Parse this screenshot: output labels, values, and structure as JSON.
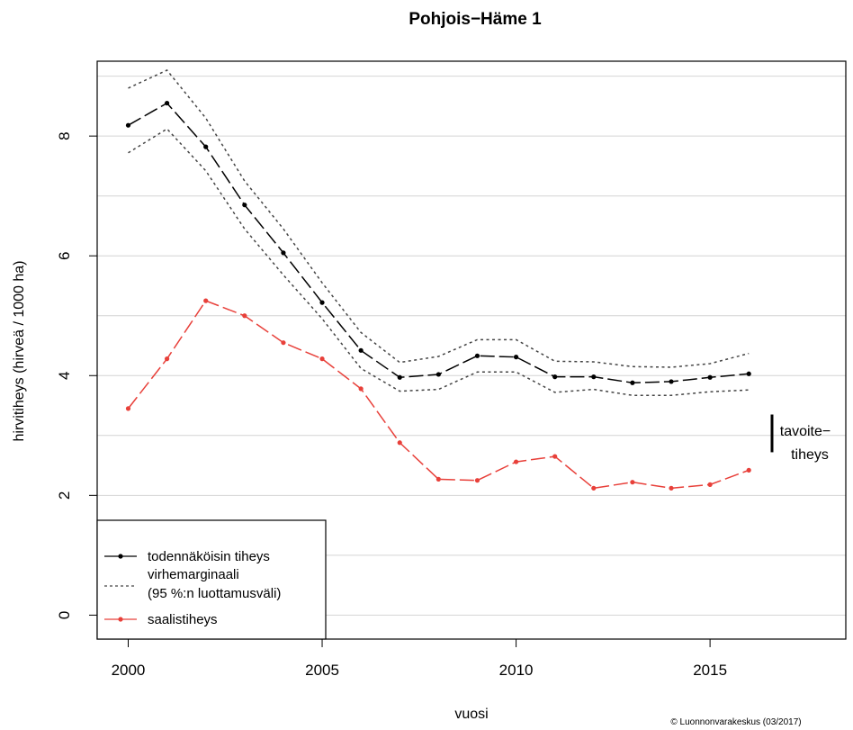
{
  "chart_data": {
    "type": "line",
    "title": "Pohjois−Häme 1",
    "xlabel": "vuosi",
    "ylabel": "hirvitiheys (hirveä / 1000 ha)",
    "xlim": [
      1999.2,
      2018.5
    ],
    "ylim": [
      -0.4,
      9.25
    ],
    "x_ticks": [
      2000,
      2005,
      2010,
      2015
    ],
    "y_ticks": [
      0,
      2,
      4,
      6,
      8
    ],
    "grid": "horizontal",
    "gridlines": [
      0,
      1,
      2,
      3,
      4,
      5,
      6,
      7,
      8,
      9
    ],
    "legend_position": "bottom-left",
    "x": [
      2000,
      2001,
      2002,
      2003,
      2004,
      2005,
      2006,
      2007,
      2008,
      2009,
      2010,
      2011,
      2012,
      2013,
      2014,
      2015,
      2016
    ],
    "series": [
      {
        "name": "todennäköisin tiheys",
        "color": "#000000",
        "style": "long-dash-with-points",
        "values": [
          8.18,
          8.55,
          7.82,
          6.85,
          6.05,
          5.22,
          4.42,
          3.97,
          4.02,
          4.33,
          4.31,
          3.98,
          3.98,
          3.88,
          3.9,
          3.97,
          4.03
        ]
      },
      {
        "name": "virhemarginaali (95 %:n luottamusväli) yläraja",
        "color": "#444444",
        "style": "dotted",
        "values": [
          8.8,
          9.1,
          8.3,
          7.25,
          6.45,
          5.55,
          4.72,
          4.22,
          4.32,
          4.6,
          4.6,
          4.24,
          4.23,
          4.15,
          4.14,
          4.2,
          4.37
        ]
      },
      {
        "name": "virhemarginaali (95 %:n luottamusväli) alaraja",
        "color": "#444444",
        "style": "dotted",
        "values": [
          7.72,
          8.12,
          7.42,
          6.45,
          5.68,
          4.95,
          4.12,
          3.74,
          3.77,
          4.06,
          4.06,
          3.72,
          3.77,
          3.67,
          3.67,
          3.73,
          3.76
        ]
      },
      {
        "name": "saalistiheys",
        "color": "#e8403a",
        "style": "long-dash-with-points",
        "values": [
          3.45,
          4.28,
          5.25,
          5.0,
          4.55,
          4.28,
          3.78,
          2.88,
          2.27,
          2.25,
          2.56,
          2.65,
          2.12,
          2.22,
          2.12,
          2.18,
          2.42
        ]
      }
    ],
    "target_density": {
      "range": [
        2.72,
        3.35
      ],
      "label_line1": "tavoite−",
      "label_line2": "tiheys"
    },
    "legend": [
      {
        "line1": "todennäköisin tiheys",
        "line2": "",
        "style": "line-with-point",
        "color": "#000000"
      },
      {
        "line1": "virhemarginaali",
        "line2": "(95 %:n luottamusväli)",
        "style": "dotted",
        "color": "#444444"
      },
      {
        "line1": "saalistiheys",
        "line2": "",
        "style": "line-with-point",
        "color": "#e8403a"
      }
    ],
    "credit": "© Luonnonvarakeskus (03/2017)"
  }
}
